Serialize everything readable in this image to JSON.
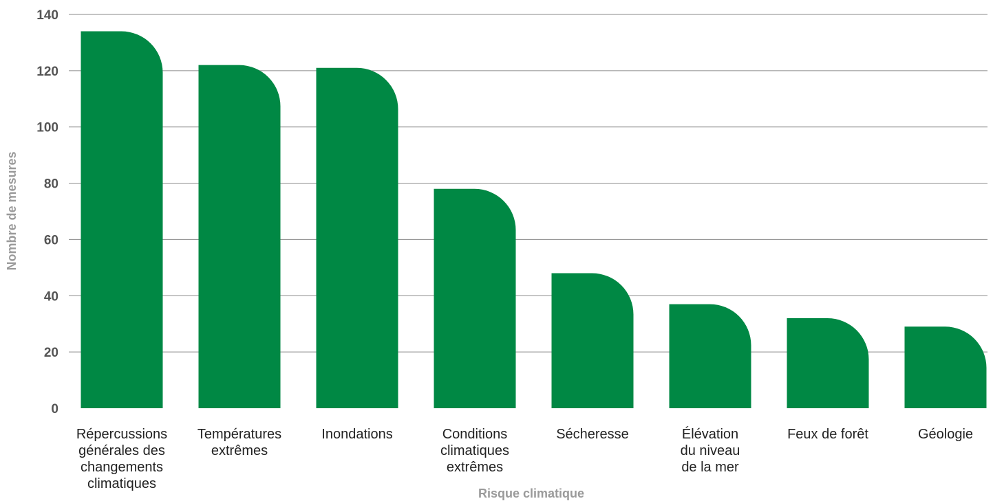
{
  "chart_data": {
    "type": "bar",
    "categories": [
      [
        "Répercussions",
        "générales des",
        "changements",
        "climatiques"
      ],
      [
        "Températures",
        "extrêmes"
      ],
      [
        "Inondations"
      ],
      [
        "Conditions",
        "climatiques",
        "extrêmes"
      ],
      [
        "Sécheresse"
      ],
      [
        "Élévation",
        "du niveau",
        "de la mer"
      ],
      [
        "Feux de forêt"
      ],
      [
        "Géologie"
      ]
    ],
    "values": [
      134,
      122,
      121,
      78,
      48,
      37,
      32,
      29
    ],
    "xlabel": "Risque climatique",
    "ylabel": "Nombre de mesures",
    "ylim": [
      0,
      140
    ],
    "yticks": [
      0,
      20,
      40,
      60,
      80,
      100,
      120,
      140
    ],
    "grid": true,
    "colors": {
      "bar": "#008844",
      "grid": "#8a8a8a",
      "axis_label": "#9a9a9a",
      "tick_label": "#555555",
      "category_label": "#222222"
    }
  }
}
